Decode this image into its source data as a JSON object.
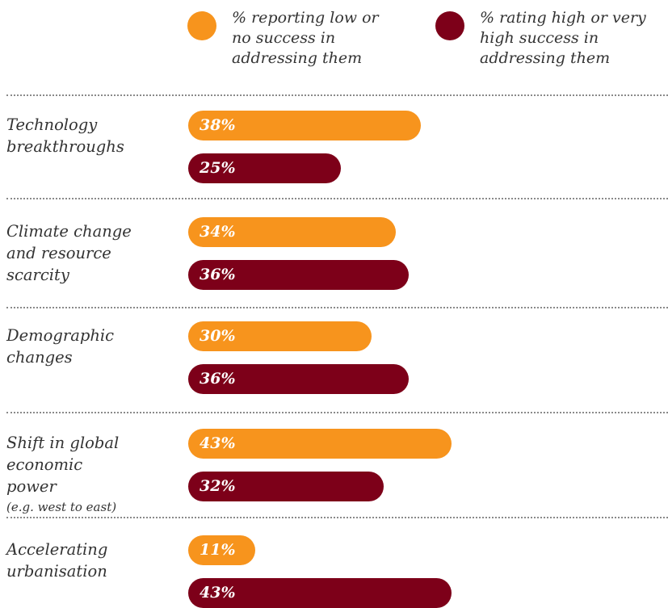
{
  "chart_data": {
    "type": "bar",
    "orientation": "horizontal",
    "categories": [
      "Technology breakthroughs",
      "Climate change and resource scarcity",
      "Demographic changes",
      "Shift in global economic power",
      "Accelerating urbanisation"
    ],
    "category_notes": [
      null,
      null,
      null,
      "(e.g. west to east)",
      null
    ],
    "series": [
      {
        "name": "% reporting low or no success in addressing them",
        "color": "#f7941d",
        "values": [
          38,
          34,
          30,
          43,
          11
        ],
        "value_labels": [
          "38%",
          "34%",
          "30%",
          "43%",
          "11%"
        ]
      },
      {
        "name": "% rating high or very high success in addressing them",
        "color": "#7d0019",
        "values": [
          25,
          36,
          36,
          32,
          43
        ],
        "value_labels": [
          "25%",
          "36%",
          "36%",
          "32%",
          "43%"
        ]
      }
    ]
  }
}
